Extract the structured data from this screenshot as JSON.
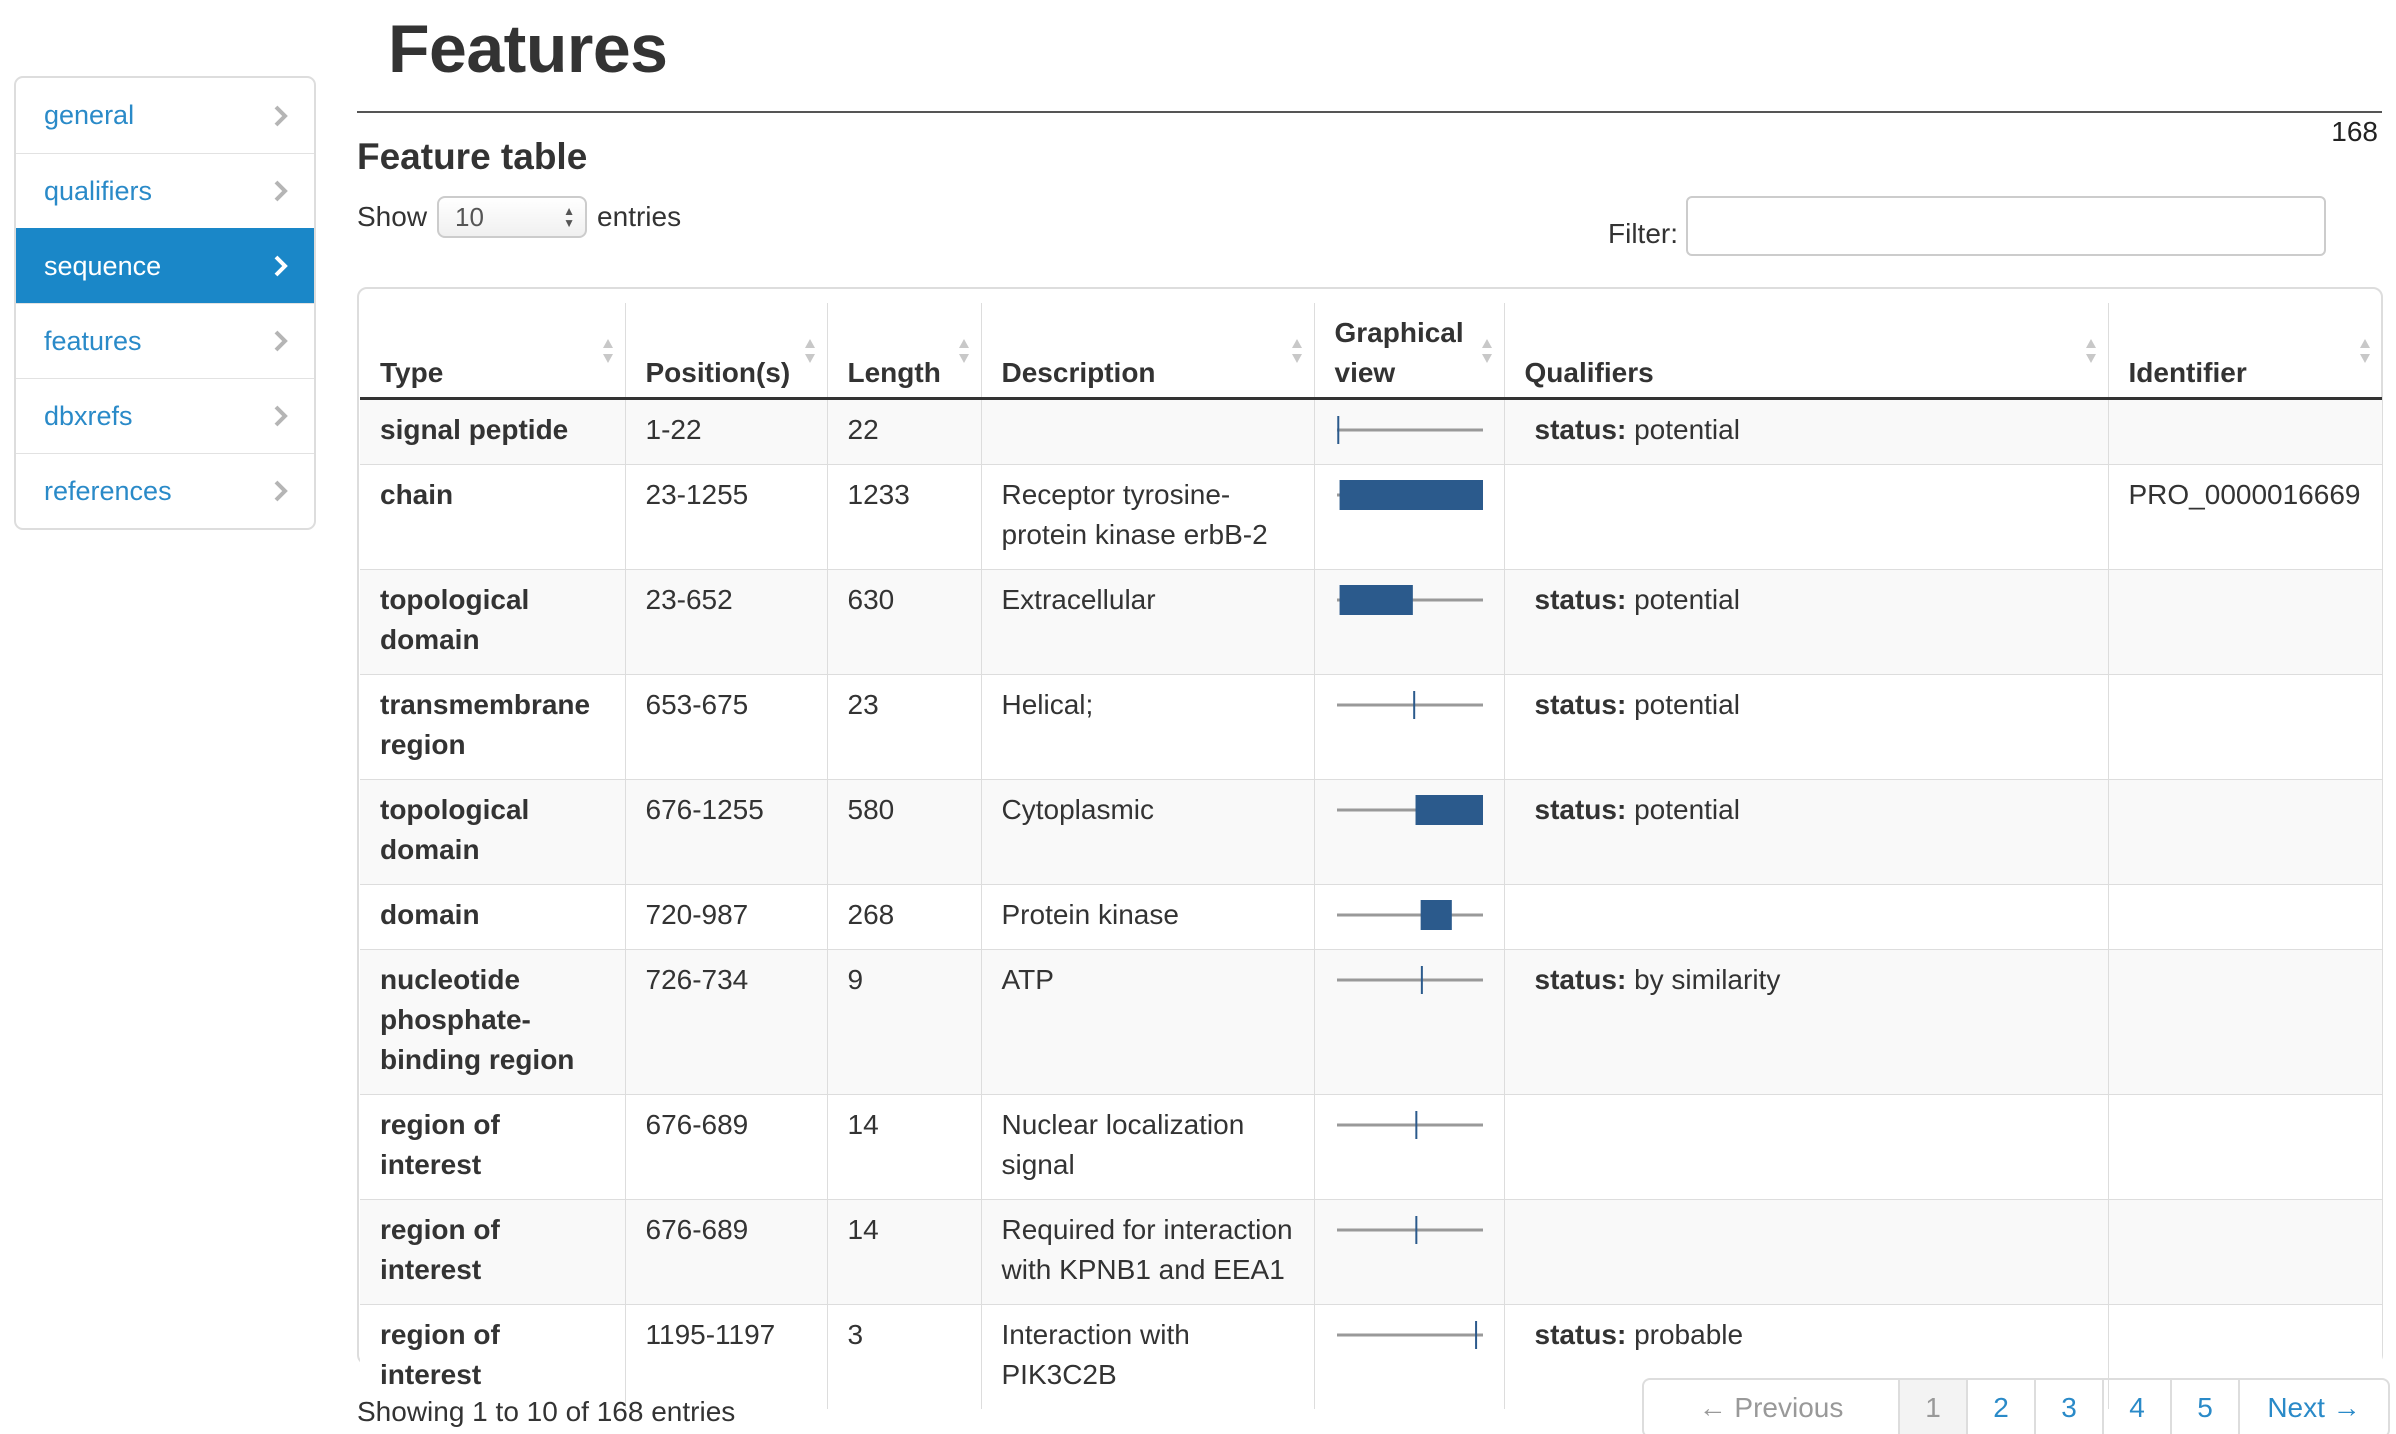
{
  "sidebar": {
    "items": [
      {
        "label": "general"
      },
      {
        "label": "qualifiers"
      },
      {
        "label": "sequence"
      },
      {
        "label": "features"
      },
      {
        "label": "dbxrefs"
      },
      {
        "label": "references"
      }
    ],
    "active": "sequence"
  },
  "page": {
    "title": "Features",
    "count": "168",
    "section_title": "Feature table"
  },
  "controls": {
    "show_label": "Show",
    "entries_value": "10",
    "entries_label": "entries",
    "filter_label": "Filter:",
    "filter_value": ""
  },
  "table": {
    "columns": [
      "Type",
      "Position(s)",
      "Length",
      "Description",
      "Graphical view",
      "Qualifiers",
      "Identifier"
    ],
    "sequence_length": 1255,
    "rows": [
      {
        "type": "signal peptide",
        "position": "1-22",
        "length": "22",
        "description": "",
        "qual_key": "status:",
        "qual_value": "potential",
        "identifier": "",
        "start": 1,
        "end": 22
      },
      {
        "type": "chain",
        "position": "23-1255",
        "length": "1233",
        "description": "Receptor tyrosine-protein kinase erbB-2",
        "qual_key": "",
        "qual_value": "",
        "identifier": "PRO_0000016669",
        "start": 23,
        "end": 1255
      },
      {
        "type": "topological domain",
        "position": "23-652",
        "length": "630",
        "description": "Extracellular",
        "qual_key": "status:",
        "qual_value": "potential",
        "identifier": "",
        "start": 23,
        "end": 652
      },
      {
        "type": "transmembrane region",
        "position": "653-675",
        "length": "23",
        "description": "Helical;",
        "qual_key": "status:",
        "qual_value": "potential",
        "identifier": "",
        "start": 653,
        "end": 675
      },
      {
        "type": "topological domain",
        "position": "676-1255",
        "length": "580",
        "description": "Cytoplasmic",
        "qual_key": "status:",
        "qual_value": "potential",
        "identifier": "",
        "start": 676,
        "end": 1255
      },
      {
        "type": "domain",
        "position": "720-987",
        "length": "268",
        "description": "Protein kinase",
        "qual_key": "",
        "qual_value": "",
        "identifier": "",
        "start": 720,
        "end": 987
      },
      {
        "type": "nucleotide phosphate-binding region",
        "position": "726-734",
        "length": "9",
        "description": "ATP",
        "qual_key": "status:",
        "qual_value": "by similarity",
        "identifier": "",
        "start": 726,
        "end": 734
      },
      {
        "type": "region of interest",
        "position": "676-689",
        "length": "14",
        "description": "Nuclear localization signal",
        "qual_key": "",
        "qual_value": "",
        "identifier": "",
        "start": 676,
        "end": 689
      },
      {
        "type": "region of interest",
        "position": "676-689",
        "length": "14",
        "description": "Required for interaction with KPNB1 and EEA1",
        "qual_key": "",
        "qual_value": "",
        "identifier": "",
        "start": 676,
        "end": 689
      },
      {
        "type": "region of interest",
        "position": "1195-1197",
        "length": "3",
        "description": "Interaction with PIK3C2B",
        "qual_key": "status:",
        "qual_value": "probable",
        "identifier": "",
        "start": 1195,
        "end": 1197
      }
    ]
  },
  "footer": {
    "info": "Showing 1 to 10 of 168 entries",
    "pagination": [
      "← Previous",
      "1",
      "2",
      "3",
      "4",
      "5",
      "Next →"
    ],
    "current_page": "1"
  },
  "colors": {
    "accent": "#1a87c8",
    "link": "#2a8ac8",
    "feature_bar": "#2b5a8c",
    "track_line": "#999999"
  }
}
